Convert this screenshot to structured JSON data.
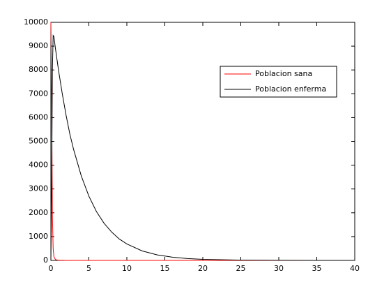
{
  "chart_data": {
    "type": "line",
    "x": [
      0,
      0.1,
      0.2,
      0.3,
      0.4,
      0.6,
      0.8,
      1,
      1.5,
      2,
      2.5,
      3,
      4,
      5,
      6,
      7,
      8,
      9,
      10,
      12,
      14,
      16,
      18,
      20,
      25,
      30,
      35,
      40
    ],
    "series": [
      {
        "name": "Poblacion sana",
        "color": "#ff0000",
        "values": [
          10000,
          6900,
          1900,
          500,
          150,
          40,
          15,
          8,
          3,
          1,
          0,
          0,
          0,
          0,
          0,
          0,
          0,
          0,
          0,
          0,
          0,
          0,
          0,
          0,
          0,
          0,
          0,
          0
        ]
      },
      {
        "name": "Poblacion enferma",
        "color": "#000000",
        "values": [
          0,
          3000,
          8000,
          9450,
          9400,
          8900,
          8450,
          8000,
          7000,
          6100,
          5300,
          4650,
          3550,
          2700,
          2050,
          1560,
          1190,
          900,
          690,
          400,
          230,
          135,
          78,
          45,
          12,
          3,
          1,
          0
        ]
      }
    ],
    "xlim": [
      0,
      40
    ],
    "xticks": [
      0,
      5,
      10,
      15,
      20,
      25,
      30,
      35,
      40
    ],
    "ylim": [
      0,
      10000
    ],
    "yticks": [
      0,
      1000,
      2000,
      3000,
      4000,
      5000,
      6000,
      7000,
      8000,
      9000,
      10000
    ],
    "legend": "upper right"
  }
}
